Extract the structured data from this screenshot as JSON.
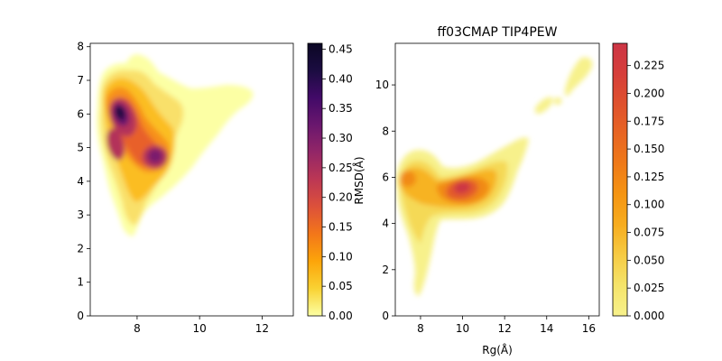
{
  "figure_title": "",
  "chart_data": [
    {
      "type": "heatmap",
      "subtype": "kde-contour",
      "title": "",
      "xlabel": "",
      "ylabel": "",
      "xlim": [
        6.5,
        13.0
      ],
      "ylim": [
        0,
        8.1
      ],
      "xticks": [
        8,
        10,
        12
      ],
      "yticks": [
        0,
        1,
        2,
        3,
        4,
        5,
        6,
        7,
        8
      ],
      "colormap": "inferno_r",
      "colorbar": {
        "range": [
          0,
          0.46
        ],
        "ticks": [
          "0.00",
          "0.05",
          "0.10",
          "0.15",
          "0.20",
          "0.25",
          "0.30",
          "0.35",
          "0.40",
          "0.45"
        ],
        "label": "",
        "colors": [
          "#fcffa4",
          "#f9d233",
          "#fca50a",
          "#f37719",
          "#dd513a",
          "#bc3754",
          "#932667",
          "#6a176e",
          "#420a68",
          "#1b0c41",
          "#0b0724"
        ]
      },
      "density_peaks": [
        {
          "x": 7.5,
          "y": 6.0,
          "value": 0.45
        },
        {
          "x": 7.3,
          "y": 5.0,
          "value": 0.38
        },
        {
          "x": 8.6,
          "y": 4.8,
          "value": 0.36
        },
        {
          "x": 7.4,
          "y": 6.8,
          "value": 0.18
        },
        {
          "x": 8.0,
          "y": 3.5,
          "value": 0.12
        }
      ],
      "grid": false
    },
    {
      "type": "heatmap",
      "subtype": "kde-contour",
      "title": "ff03CMAP TIP4PEW",
      "xlabel": "Rg(Å)",
      "ylabel": "RMSD(Å)",
      "xlim": [
        6.8,
        16.5
      ],
      "ylim": [
        0,
        11.8
      ],
      "xticks": [
        8,
        10,
        12,
        14,
        16
      ],
      "yticks": [
        0,
        2,
        4,
        6,
        8,
        10
      ],
      "colormap": "CMRmap-like",
      "colorbar": {
        "range": [
          0,
          0.245
        ],
        "ticks": [
          "0.000",
          "0.025",
          "0.050",
          "0.075",
          "0.100",
          "0.125",
          "0.150",
          "0.175",
          "0.200",
          "0.225"
        ],
        "label": "",
        "colors": [
          "#f7f18b",
          "#f5e46a",
          "#f6cb43",
          "#f7ad1f",
          "#f59512",
          "#ef7a18",
          "#e86522",
          "#df512d",
          "#d63e3a",
          "#cc3545"
        ]
      },
      "density_peaks": [
        {
          "x": 10.1,
          "y": 5.5,
          "value": 0.245
        },
        {
          "x": 7.6,
          "y": 5.9,
          "value": 0.1
        },
        {
          "x": 11.2,
          "y": 5.8,
          "value": 0.08
        }
      ],
      "grid": false
    }
  ]
}
